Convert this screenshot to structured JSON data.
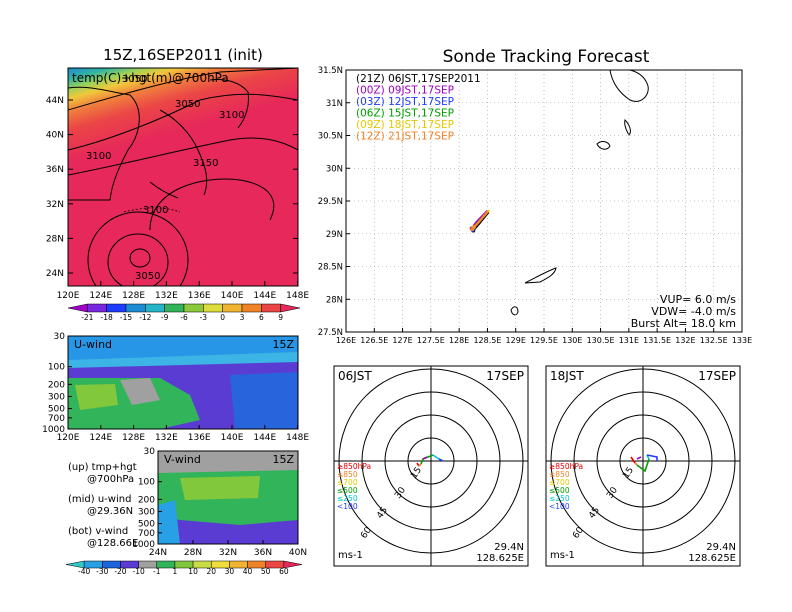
{
  "left": {
    "title": "15Z,16SEP2011 (init)",
    "map": {
      "label": "temp(C)+hgt(m)@700hPa",
      "contour_labels": [
        "3050",
        "3050",
        "3100",
        "3100",
        "3150",
        "3100",
        "3050"
      ],
      "lat_ticks": [
        "44N",
        "40N",
        "36N",
        "32N",
        "28N",
        "24N"
      ],
      "lon_ticks": [
        "120E",
        "124E",
        "128E",
        "132E",
        "136E",
        "140E",
        "144E",
        "148E"
      ],
      "colorbar": [
        "-21",
        "-18",
        "-15",
        "-12",
        "-9",
        "-6",
        "-3",
        "0",
        "3",
        "6",
        "9"
      ]
    },
    "uwind": {
      "label": "U-wind",
      "time": "15Z",
      "p_ticks": [
        "30",
        "100",
        "200",
        "300",
        "500",
        "700",
        "1000"
      ],
      "lon_ticks": [
        "120E",
        "124E",
        "128E",
        "132E",
        "136E",
        "140E",
        "144E",
        "148E"
      ]
    },
    "vwind": {
      "label": "V-wind",
      "time": "15Z",
      "p_ticks": [
        "30",
        "100",
        "200",
        "300",
        "500",
        "700",
        "1000"
      ],
      "lat_ticks": [
        "24N",
        "28N",
        "32N",
        "36N",
        "40N"
      ],
      "colorbar": [
        "-40",
        "-30",
        "-20",
        "-10",
        "-1",
        "1",
        "10",
        "20",
        "30",
        "40",
        "50",
        "60"
      ]
    },
    "legend": [
      {
        "a": "(up) tmp+hgt",
        "b": "@700hPa"
      },
      {
        "a": "(mid) u-wind",
        "b": "@29.36N"
      },
      {
        "a": "(bot) v-wind",
        "b": "@128.66E"
      }
    ]
  },
  "right": {
    "title": "Sonde Tracking Forecast",
    "track": {
      "lat_ticks": [
        "31.5N",
        "31N",
        "30.5N",
        "30N",
        "29.5N",
        "29N",
        "28.5N",
        "28N",
        "27.5N"
      ],
      "lon_ticks": [
        "126E",
        "126.5E",
        "127E",
        "127.5E",
        "128E",
        "128.5E",
        "129E",
        "129.5E",
        "130E",
        "130.5E",
        "131E",
        "131.5E",
        "132E",
        "132.5E",
        "133E"
      ],
      "legend": [
        {
          "text": "(21Z)  06JST,17SEP2011",
          "color": "#000000"
        },
        {
          "text": "(00Z)  09JST,17SEP",
          "color": "#a000c8"
        },
        {
          "text": "(03Z)  12JST,17SEP",
          "color": "#1e3cff"
        },
        {
          "text": "(06Z)  15JST,17SEP",
          "color": "#00a000"
        },
        {
          "text": "(09Z)  18JST,17SEP",
          "color": "#e6c800"
        },
        {
          "text": "(12Z)  21JST,17SEP",
          "color": "#f08228"
        }
      ],
      "vup": "VUP=  6.0  m/s",
      "vdw": "VDW= -4.0  m/s",
      "burst": "Burst Alt=  18.0  km"
    },
    "hodo1": {
      "time": "06JST",
      "date": "17SEP",
      "lat": "29.4N",
      "lon": "128.625E",
      "units": "ms-1"
    },
    "hodo2": {
      "time": "18JST",
      "date": "17SEP",
      "lat": "29.4N",
      "lon": "128.625E",
      "units": "ms-1"
    },
    "hodo_rings": [
      "15",
      "30",
      "45",
      "60"
    ],
    "hodo_legend": [
      {
        "text": "≥850hPa",
        "color": "#e60000"
      },
      {
        "text": "≤850",
        "color": "#f08228"
      },
      {
        "text": "≤700",
        "color": "#e6c800"
      },
      {
        "text": "≤500",
        "color": "#00a000"
      },
      {
        "text": "≤250",
        "color": "#00c8c8"
      },
      {
        "text": "<100",
        "color": "#1e3cff"
      }
    ]
  },
  "chart_data": [
    {
      "type": "heatmap",
      "title": "15Z,16SEP2011 (init)",
      "field": "temp(C)+hgt(m)@700hPa",
      "xlim": [
        "120E",
        "148E"
      ],
      "ylim": [
        "24N",
        "44N"
      ],
      "colorbar_levels": [
        -21,
        -18,
        -15,
        -12,
        -9,
        -6,
        -3,
        0,
        3,
        6,
        9
      ]
    },
    {
      "type": "heatmap",
      "title": "U-wind 15Z",
      "y_pressure_hPa": [
        30,
        100,
        200,
        300,
        500,
        700,
        1000
      ]
    },
    {
      "type": "heatmap",
      "title": "V-wind 15Z",
      "y_pressure_hPa": [
        30,
        100,
        200,
        300,
        500,
        700,
        1000
      ],
      "colorbar_levels": [
        -40,
        -30,
        -20,
        -10,
        -1,
        1,
        10,
        20,
        30,
        40,
        50,
        60
      ]
    },
    {
      "type": "line",
      "title": "Sonde Tracking Forecast",
      "xlim": [
        126,
        133
      ],
      "ylim": [
        27.5,
        31.5
      ],
      "series": [
        {
          "name": "(21Z) 06JST,17SEP2011",
          "x": [
            128.25,
            128.35,
            128.52
          ],
          "y": [
            29.05,
            29.15,
            29.33
          ]
        },
        {
          "name": "(00Z) 09JST,17SEP",
          "x": [
            128.22,
            128.3,
            128.5
          ],
          "y": [
            29.08,
            29.17,
            29.35
          ]
        },
        {
          "name": "(03Z) 12JST,17SEP",
          "x": [
            128.24,
            128.33,
            128.5
          ],
          "y": [
            29.06,
            29.16,
            29.33
          ]
        },
        {
          "name": "(06Z) 15JST,17SEP",
          "x": [
            128.25,
            128.32,
            128.47
          ],
          "y": [
            29.09,
            29.16,
            29.3
          ]
        },
        {
          "name": "(09Z) 18JST,17SEP",
          "x": [
            128.26,
            128.35,
            128.53
          ],
          "y": [
            29.1,
            29.18,
            29.36
          ]
        },
        {
          "name": "(12Z) 21JST,17SEP",
          "x": [
            128.23,
            128.31,
            128.5
          ],
          "y": [
            29.07,
            29.14,
            29.34
          ]
        }
      ]
    }
  ]
}
